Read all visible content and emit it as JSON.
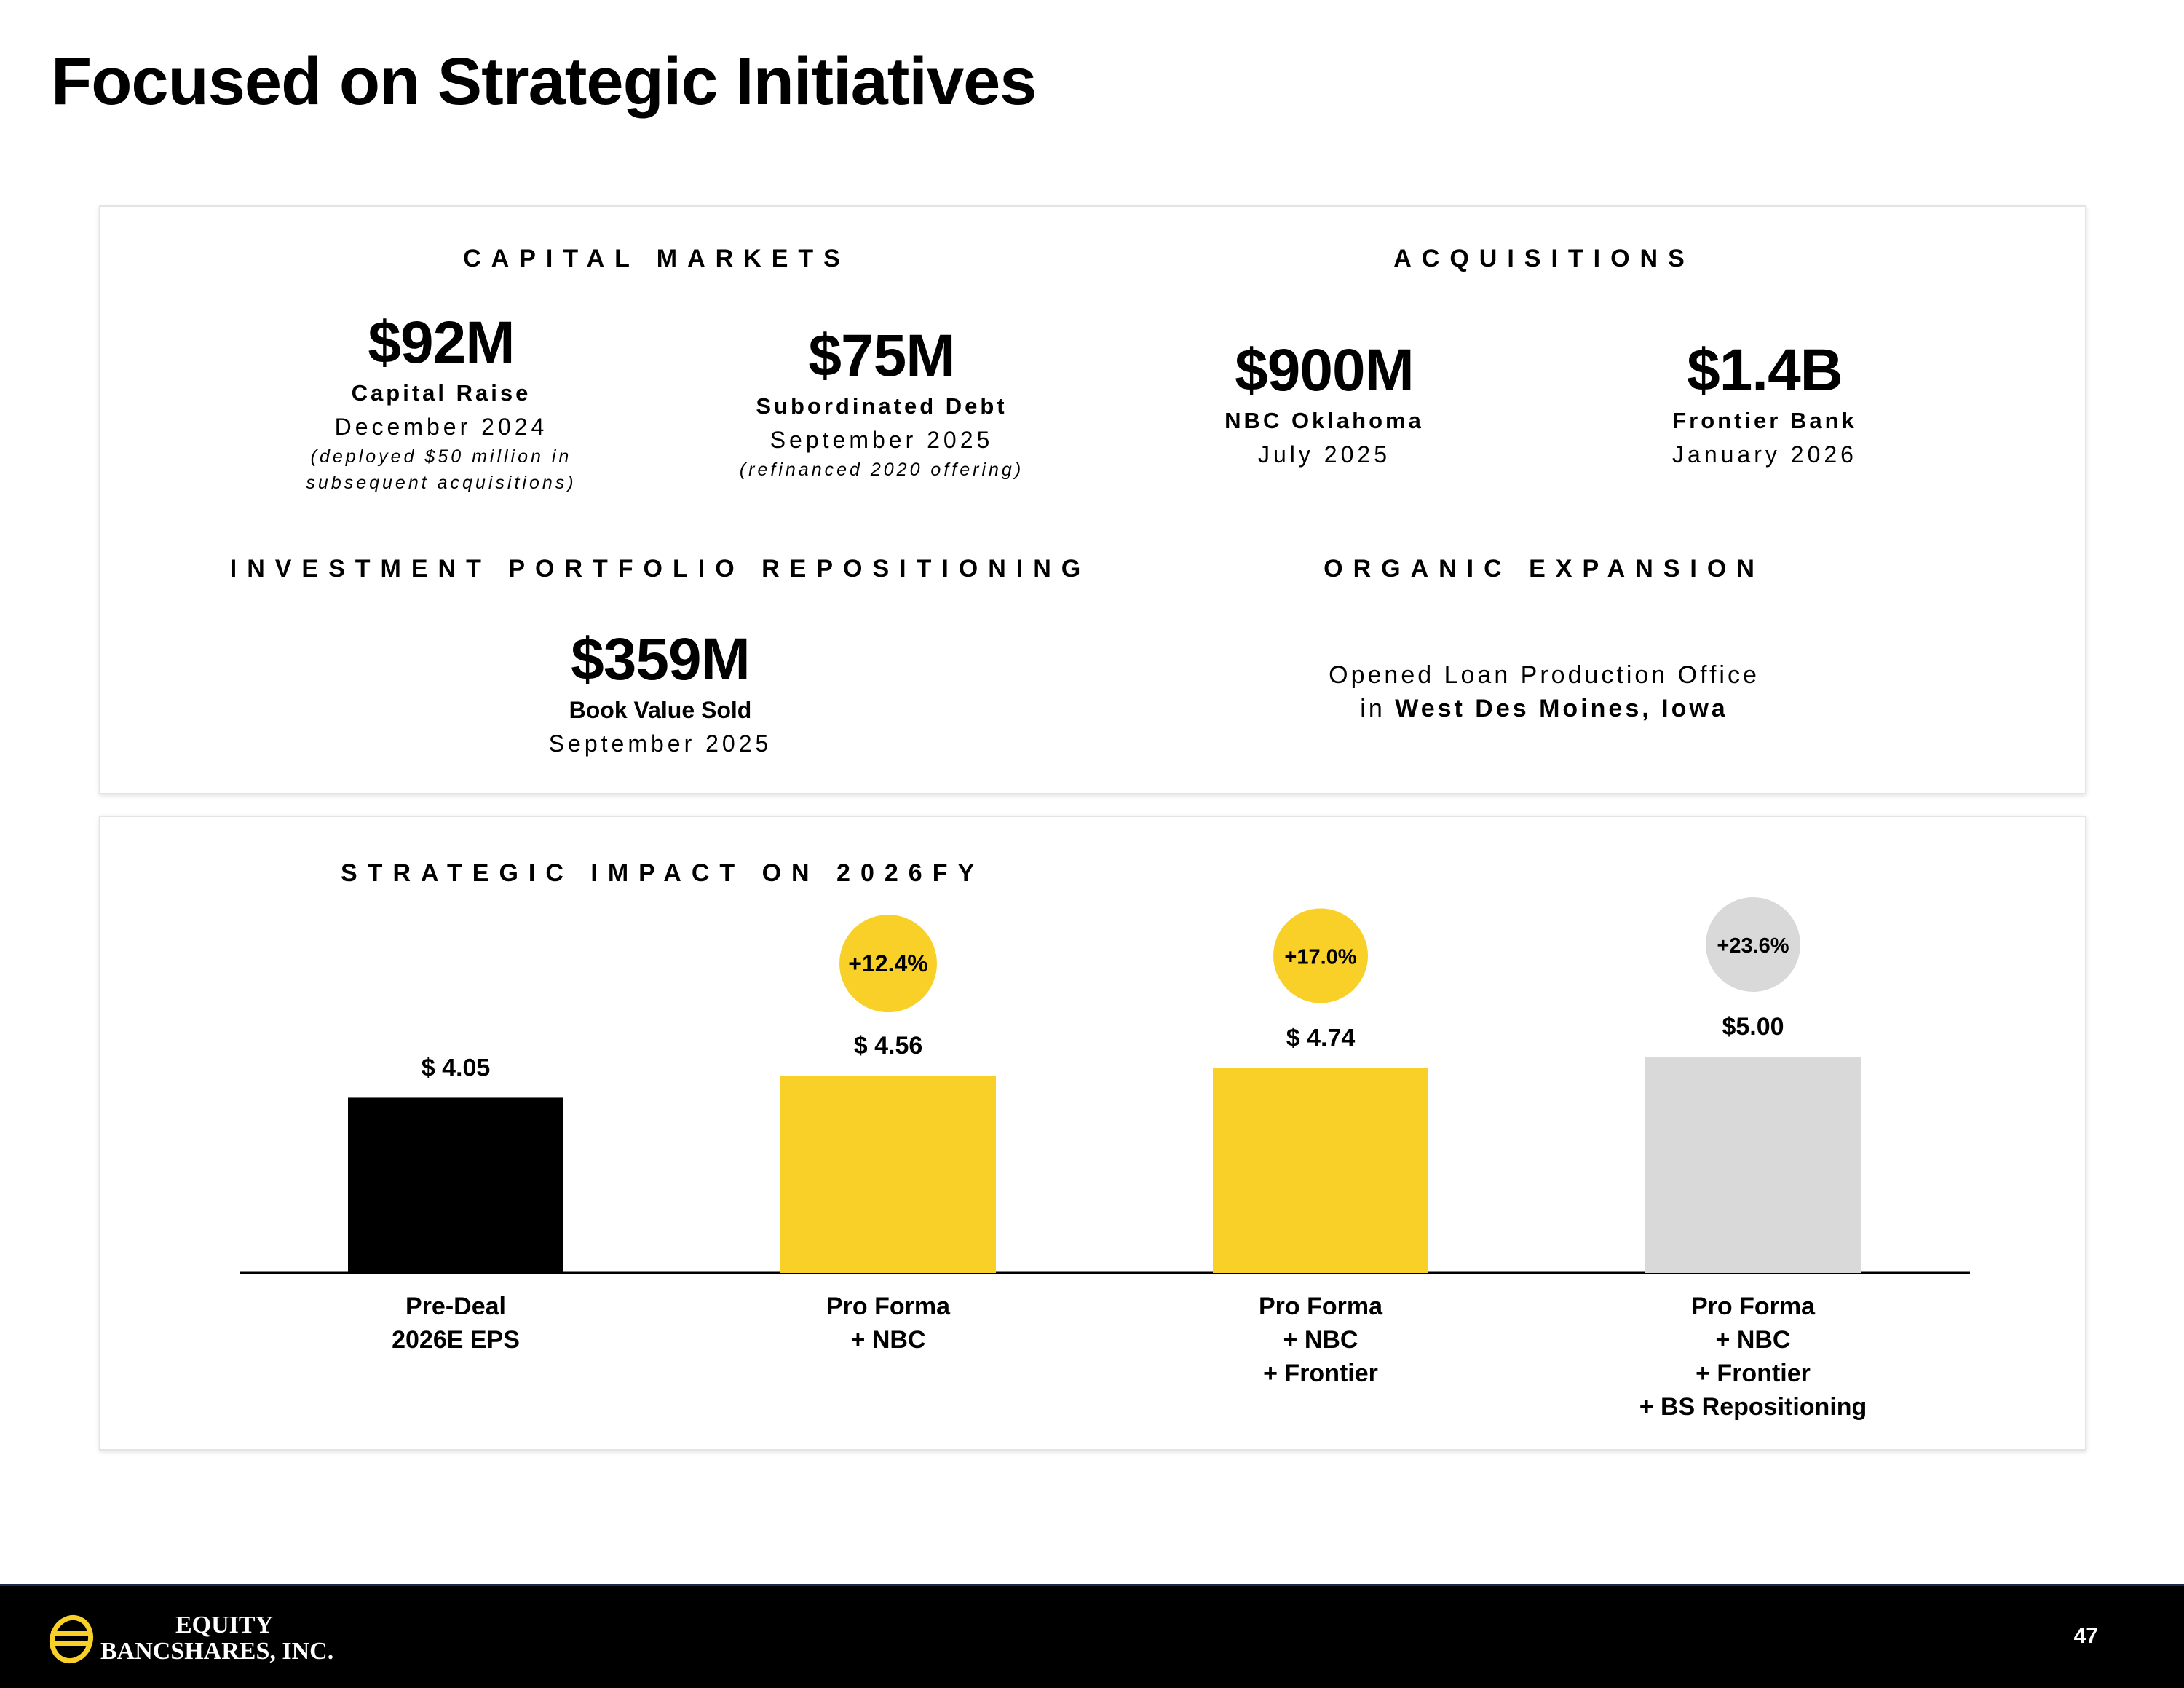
{
  "title": "Focused on Strategic Initiatives",
  "capital_markets": {
    "heading": "CAPITAL MARKETS",
    "items": [
      {
        "value": "$92M",
        "label": "Capital Raise",
        "date": "December 2024",
        "note1": "(deployed $50 million in",
        "note2": "subsequent acquisitions)"
      },
      {
        "value": "$75M",
        "label": "Subordinated Debt",
        "date": "September 2025",
        "note1": "(refinanced 2020 offering)"
      }
    ]
  },
  "acquisitions": {
    "heading": "ACQUISITIONS",
    "items": [
      {
        "value": "$900M",
        "label": "NBC Oklahoma",
        "date": "July 2025"
      },
      {
        "value": "$1.4B",
        "label": "Frontier Bank",
        "date": "January 2026"
      }
    ]
  },
  "investment": {
    "heading": "INVESTMENT PORTFOLIO REPOSITIONING",
    "value": "$359M",
    "label": "Book Value Sold",
    "date": "September 2025"
  },
  "organic": {
    "heading": "ORGANIC EXPANSION",
    "line1": "Opened Loan Production Office",
    "line2_prefix": "in",
    "line2_bold": "West Des Moines, Iowa"
  },
  "chart_heading": "STRATEGIC IMPACT ON 2026FY",
  "chart_data": {
    "type": "bar",
    "title": "STRATEGIC IMPACT ON 2026FY",
    "categories": [
      [
        "Pre-Deal",
        "2026E EPS"
      ],
      [
        "Pro Forma",
        "+ NBC"
      ],
      [
        "Pro Forma",
        "+ NBC",
        "+ Frontier"
      ],
      [
        "Pro Forma",
        "+ NBC",
        "+ Frontier",
        "+ BS Repositioning"
      ]
    ],
    "values": [
      4.05,
      4.56,
      4.74,
      5.0
    ],
    "value_labels": [
      "$ 4.05",
      "$ 4.56",
      "$ 4.74",
      "$5.00"
    ],
    "changes": [
      null,
      "+12.4%",
      "+17.0%",
      "+23.6%"
    ],
    "colors": [
      "#000000",
      "#f8d027",
      "#f8d027",
      "#d9d9d9"
    ],
    "badge_colors": [
      null,
      "#f8d027",
      "#f8d027",
      "#d9d9d9"
    ],
    "grid": false,
    "axes_visible": false
  },
  "footer": {
    "logo_line1": "EQUITY",
    "logo_line2": "BANCSHARES, INC.",
    "page_number": "47"
  }
}
